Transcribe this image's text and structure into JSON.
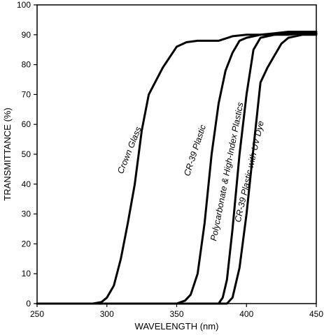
{
  "chart_data": {
    "type": "line",
    "title": "",
    "xlabel": "WAVELENGTH (nm)",
    "ylabel": "TRANSMITTANCE (%)",
    "xlim": [
      250,
      450
    ],
    "ylim": [
      0,
      100
    ],
    "xticks": [
      250,
      300,
      350,
      400,
      450
    ],
    "yticks": [
      0,
      10,
      20,
      30,
      40,
      50,
      60,
      70,
      80,
      90,
      100
    ],
    "grid": false,
    "legend": "none",
    "series": [
      {
        "name": "Crown Glass",
        "x": [
          250,
          290,
          296,
          300,
          305,
          310,
          315,
          320,
          325,
          330,
          340,
          350,
          357,
          365,
          370,
          380,
          390,
          400,
          410,
          420,
          430,
          440,
          450
        ],
        "y": [
          0,
          0,
          0.5,
          2,
          6,
          15,
          27,
          40,
          58,
          70,
          79,
          86,
          87.5,
          88,
          88,
          88,
          89.5,
          90,
          90,
          90,
          90.5,
          90.5,
          90.5
        ]
      },
      {
        "name": "CR-39 Plastic",
        "x": [
          250,
          350,
          356,
          360,
          365,
          370,
          375,
          380,
          385,
          390,
          395,
          400,
          410,
          420,
          430,
          440,
          450
        ],
        "y": [
          0,
          0,
          1,
          3,
          10,
          27,
          50,
          67,
          78,
          84,
          88,
          89,
          90,
          90.5,
          91,
          91,
          91
        ]
      },
      {
        "name": "Polycarbonate & High-Index Plastics",
        "x": [
          250,
          380,
          383,
          386,
          390,
          395,
          400,
          405,
          410,
          420,
          430,
          440,
          450
        ],
        "y": [
          0,
          0,
          2,
          8,
          25,
          50,
          70,
          85,
          89,
          90,
          90,
          90.5,
          90.5
        ]
      },
      {
        "name": "CR-39 Plastic with UV Dye",
        "x": [
          250,
          386,
          390,
          395,
          400,
          405,
          410,
          415,
          420,
          425,
          430,
          440,
          450
        ],
        "y": [
          0,
          0,
          2,
          12,
          30,
          52,
          74,
          79,
          83,
          87,
          89,
          90,
          90
        ]
      }
    ]
  }
}
